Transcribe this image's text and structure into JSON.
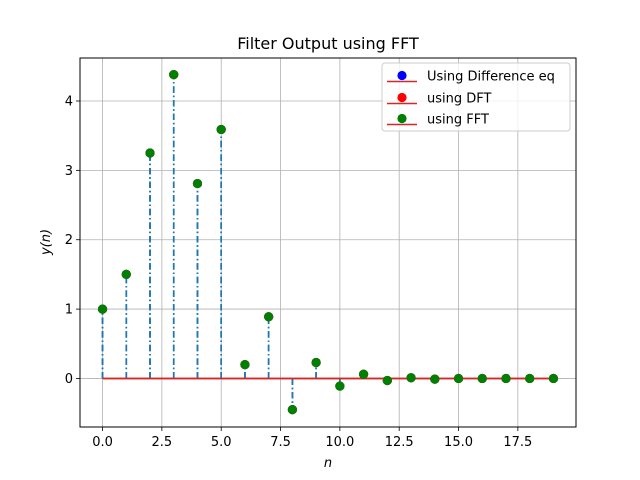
{
  "chart_data": {
    "type": "stem",
    "title": "Filter Output using FFT",
    "xlabel": "n",
    "ylabel": "y(n)",
    "xlim": [
      -0.95,
      19.95
    ],
    "ylim": [
      -0.7,
      4.62
    ],
    "grid": true,
    "legend_position": "top-right",
    "x_ticks": [
      0.0,
      2.5,
      5.0,
      7.5,
      10.0,
      12.5,
      15.0,
      17.5
    ],
    "x_tick_labels": [
      "0.0",
      "2.5",
      "5.0",
      "7.5",
      "10.0",
      "12.5",
      "15.0",
      "17.5"
    ],
    "y_ticks": [
      0,
      1,
      2,
      3,
      4
    ],
    "y_tick_labels": [
      "0",
      "1",
      "2",
      "3",
      "4"
    ],
    "x": [
      0,
      1,
      2,
      3,
      4,
      5,
      6,
      7,
      8,
      9,
      10,
      11,
      12,
      13,
      14,
      15,
      16,
      17,
      18,
      19
    ],
    "series": [
      {
        "name": "Using Difference eq",
        "marker_color": "#0000ff",
        "stem_color": "#1f77b4",
        "baseline_color": "#d62728",
        "values": [
          1.0,
          1.5,
          3.25,
          4.38,
          2.81,
          3.59,
          0.2,
          0.89,
          -0.45,
          0.23,
          -0.11,
          0.06,
          -0.03,
          0.01,
          -0.01,
          0.0,
          0.0,
          0.0,
          0.0,
          0.0
        ]
      },
      {
        "name": "using DFT",
        "marker_color": "#ff0000",
        "stem_color": "#1f77b4",
        "baseline_color": "#d62728",
        "values": [
          1.0,
          1.5,
          3.25,
          4.38,
          2.81,
          3.59,
          0.2,
          0.89,
          -0.45,
          0.23,
          -0.11,
          0.06,
          -0.03,
          0.01,
          -0.01,
          0.0,
          0.0,
          0.0,
          0.0,
          0.0
        ]
      },
      {
        "name": "using FFT",
        "marker_color": "#008000",
        "stem_color": "#1f77b4",
        "baseline_color": "#d62728",
        "values": [
          1.0,
          1.5,
          3.25,
          4.38,
          2.81,
          3.59,
          0.2,
          0.89,
          -0.45,
          0.23,
          -0.11,
          0.06,
          -0.03,
          0.01,
          -0.01,
          0.0,
          0.0,
          0.0,
          0.0,
          0.0
        ]
      }
    ]
  }
}
